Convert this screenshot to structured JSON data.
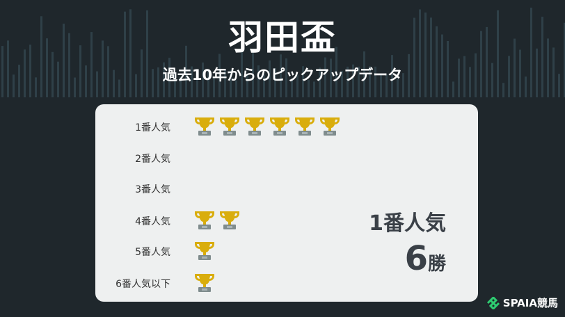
{
  "header": {
    "title": "羽田盃",
    "subtitle": "過去10年からのピックアップデータ"
  },
  "rows": [
    {
      "label": "1番人気",
      "wins": 6
    },
    {
      "label": "2番人気",
      "wins": 0
    },
    {
      "label": "3番人気",
      "wins": 0
    },
    {
      "label": "4番人気",
      "wins": 2
    },
    {
      "label": "5番人気",
      "wins": 1
    },
    {
      "label": "6番人気以下",
      "wins": 1
    }
  ],
  "summary": {
    "label": "1番人気",
    "count": "6",
    "unit": "勝"
  },
  "logo": {
    "text": "SPAIA競馬",
    "icon": "spaia-logo-icon"
  },
  "colors": {
    "background": "#1f272c",
    "card": "#eef0f0",
    "trophy_cup": "#d9ad0c",
    "trophy_base": "#7f8c8d",
    "logo_accent": "#2ecc71"
  }
}
